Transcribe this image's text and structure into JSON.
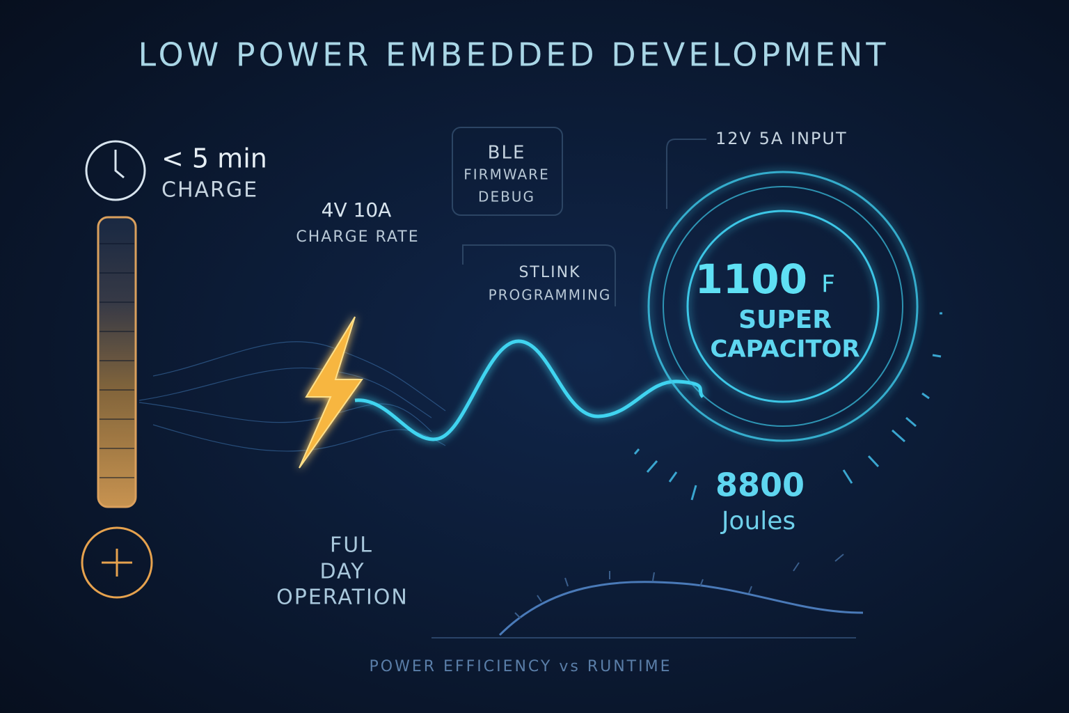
{
  "header": {
    "title": "LOW POWER EMBEDDED DEVELOPMENT"
  },
  "charge_time": {
    "value": "< 5 min",
    "label": "CHARGE"
  },
  "charge_rate": {
    "value": "4V 10A",
    "label": "CHARGE RATE"
  },
  "ble_box": {
    "lines": [
      "BLE",
      "FIRMWARE",
      "DEBUG"
    ]
  },
  "stlink_box": {
    "lines": [
      "STLINK",
      "PROGRAMMING"
    ]
  },
  "input": {
    "label": "12V 5A INPUT"
  },
  "capacitor": {
    "value": "1100",
    "unit": "F",
    "lines": [
      "SUPER",
      "CAPACITOR"
    ]
  },
  "energy": {
    "value": "8800",
    "unit": "Joules"
  },
  "runtime": {
    "lines": [
      "FUL",
      "DAY",
      "OPERATION"
    ]
  },
  "footer": {
    "caption": "POWER EFFICIENCY vs RUNTIME"
  }
}
